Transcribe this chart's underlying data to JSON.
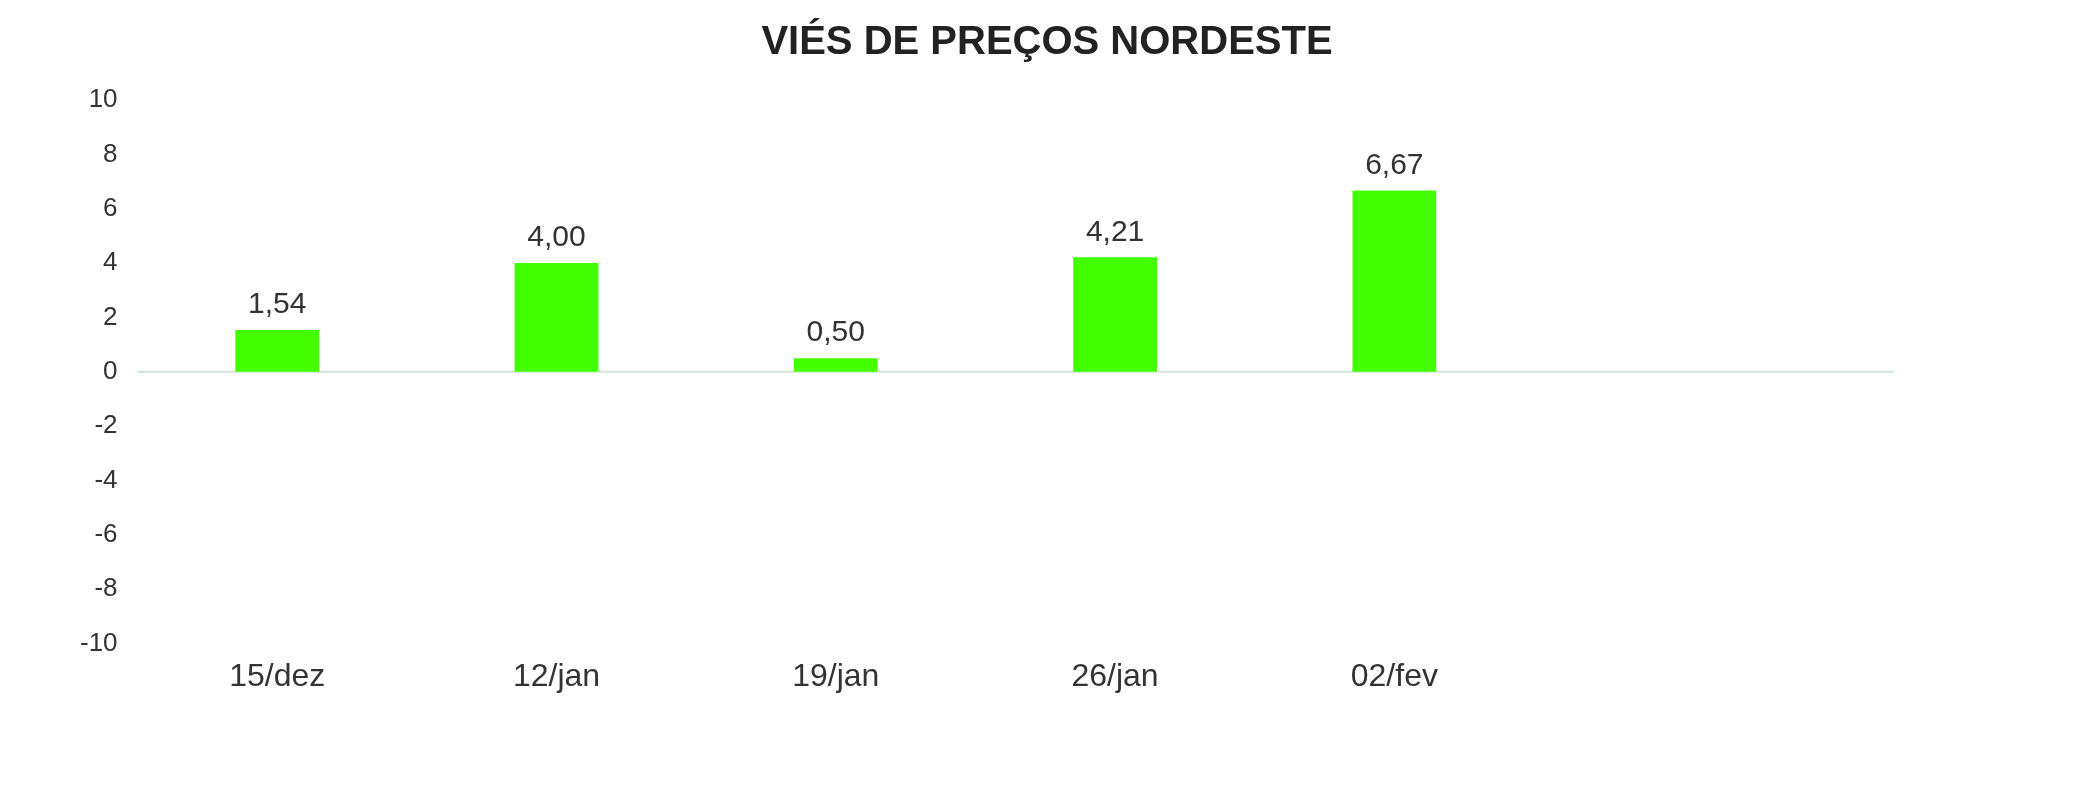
{
  "chart_data": {
    "type": "bar",
    "title": "VIÉS DE PREÇOS NORDESTE",
    "categories": [
      "15/dez",
      "12/jan",
      "19/jan",
      "26/jan",
      "02/fev"
    ],
    "values": [
      1.54,
      4.0,
      0.5,
      4.21,
      6.67
    ],
    "value_labels": [
      "1,54",
      "4,00",
      "0,50",
      "4,21",
      "6,67"
    ],
    "color": "#44ff00",
    "ylim": [
      -10,
      10
    ],
    "yticks": [
      -10,
      -8,
      -6,
      -4,
      -2,
      0,
      2,
      4,
      6,
      8,
      10
    ],
    "ref_lines": [
      {
        "axis": "y",
        "value": 0,
        "color": "#cfe3e0"
      }
    ],
    "grid": false,
    "legend": false
  }
}
